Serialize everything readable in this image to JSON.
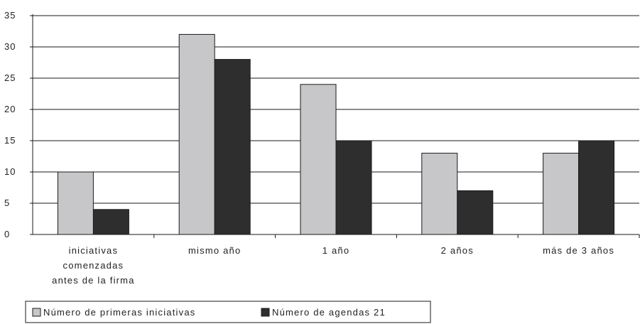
{
  "chart_data": {
    "type": "bar",
    "title": "",
    "xlabel": "",
    "ylabel": "",
    "ylim": [
      0,
      35
    ],
    "yticks": [
      0,
      5,
      10,
      15,
      20,
      25,
      30,
      35
    ],
    "grid": true,
    "legend_position": "bottom-left",
    "categories": [
      [
        "iniciativas",
        "comenzadas",
        "antes de la firma"
      ],
      [
        "mismo año"
      ],
      [
        "1 año"
      ],
      [
        "2 años"
      ],
      [
        "más de 3 años"
      ]
    ],
    "series": [
      {
        "name": "Número de primeras iniciativas",
        "color": "#c7c7c9",
        "values": [
          10,
          32,
          24,
          13,
          13
        ]
      },
      {
        "name": "Número de agendas 21",
        "color": "#2e2e2e",
        "values": [
          4,
          28,
          15,
          7,
          15
        ]
      }
    ]
  }
}
